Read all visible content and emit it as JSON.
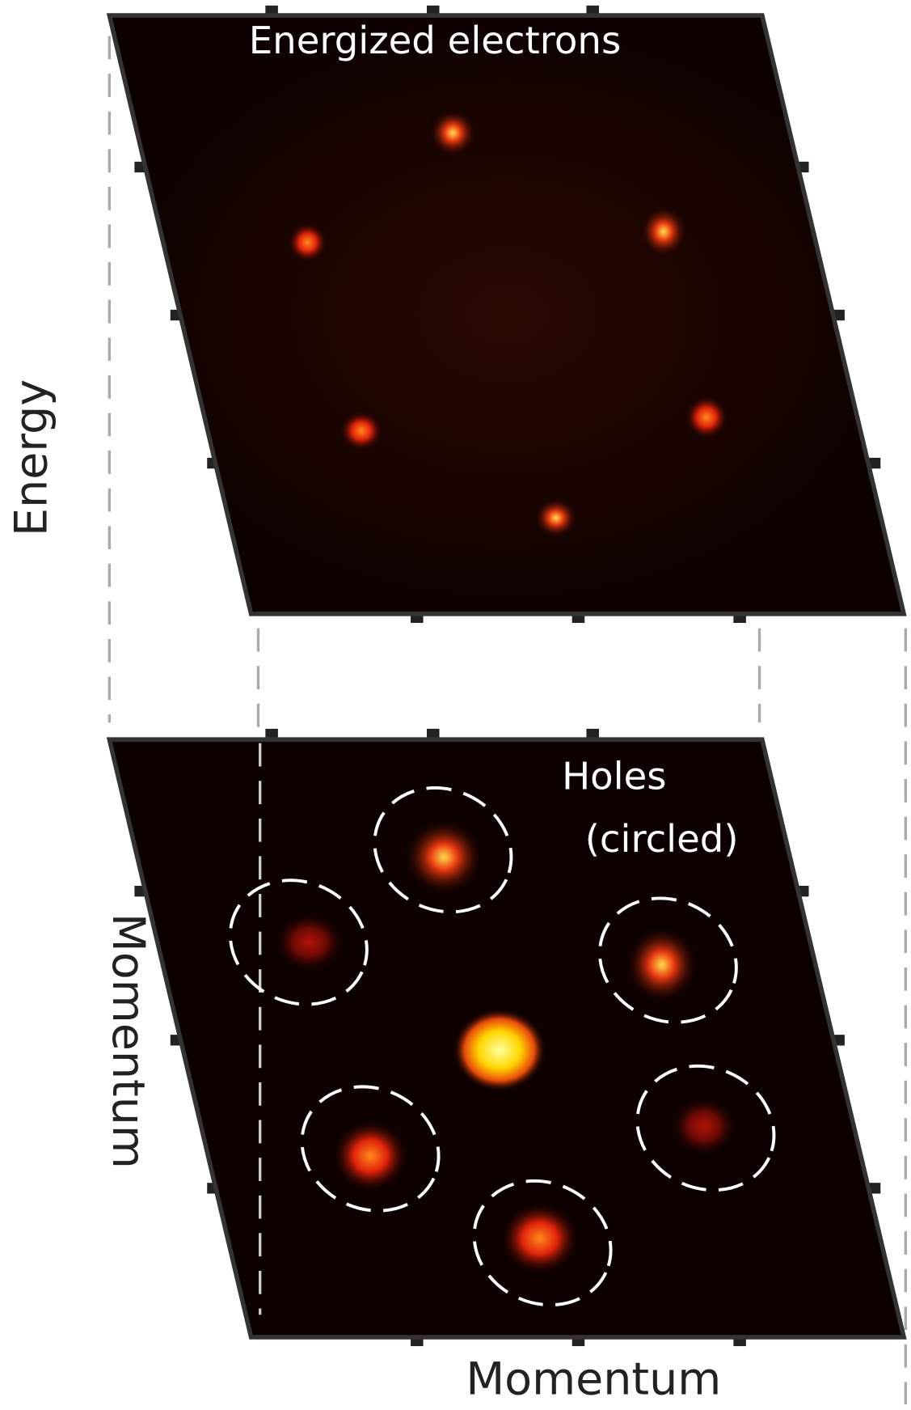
{
  "panels": {
    "top": {
      "label": "Energized electrons"
    },
    "bottom": {
      "label_line1": "Holes",
      "label_line2": "(circled)"
    }
  },
  "axes": {
    "vertical": "Energy",
    "side": "Momentum",
    "bottom": "Momentum"
  }
}
